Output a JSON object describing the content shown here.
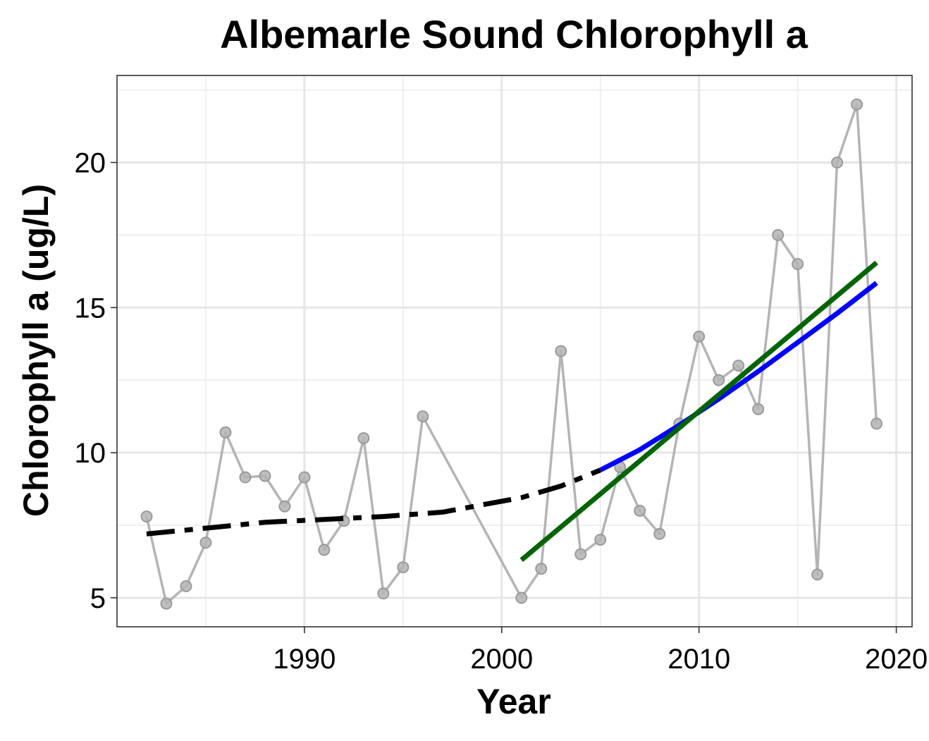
{
  "chart_data": {
    "type": "line",
    "title": "Albemarle Sound Chlorophyll a",
    "xlabel": "Year",
    "ylabel": "Chlorophyll a (ug/L)",
    "xlim": [
      1980.5,
      2020.8
    ],
    "ylim": [
      4.0,
      23.0
    ],
    "x_ticks": [
      1990,
      2000,
      2010,
      2020
    ],
    "y_ticks": [
      5,
      10,
      15,
      20
    ],
    "x_tick_labels": [
      "1990",
      "2000",
      "2010",
      "2020"
    ],
    "y_tick_labels": [
      "5",
      "10",
      "15",
      "20"
    ],
    "grid": true,
    "legend": "none",
    "series": [
      {
        "style": "line+points",
        "color": "#b4b4b4",
        "x": [
          1982,
          1983,
          1984,
          1985,
          1986,
          1987,
          1988,
          1989,
          1990,
          1991,
          1992,
          1993,
          1994,
          1995,
          1996,
          2001,
          2002,
          2003,
          2004,
          2005,
          2006,
          2007,
          2008,
          2009,
          2010,
          2011,
          2012,
          2013,
          2014,
          2015,
          2016,
          2017,
          2018,
          2019
        ],
        "y": [
          7.8,
          4.8,
          5.4,
          6.9,
          10.7,
          9.15,
          9.2,
          8.15,
          9.15,
          6.65,
          7.65,
          10.5,
          5.15,
          6.05,
          11.25,
          5.0,
          6.0,
          13.5,
          6.5,
          7.0,
          9.5,
          8.0,
          7.2,
          11.0,
          14.0,
          12.5,
          13.0,
          11.5,
          17.5,
          16.5,
          5.8,
          20.0,
          22.0,
          11.0
        ]
      },
      {
        "style": "dashed-trend",
        "color": "#000000",
        "x": [
          1982,
          1985,
          1988,
          1991,
          1994,
          1997,
          1999,
          2001,
          2003,
          2005
        ],
        "y": [
          7.2,
          7.4,
          7.6,
          7.7,
          7.8,
          7.95,
          8.2,
          8.45,
          8.85,
          9.4
        ]
      },
      {
        "style": "trend",
        "color": "#0000ff",
        "x": [
          2005,
          2007,
          2009,
          2011,
          2013,
          2015,
          2017,
          2019
        ],
        "y": [
          9.4,
          10.1,
          10.95,
          11.85,
          12.8,
          13.8,
          14.8,
          15.85
        ]
      },
      {
        "style": "trend",
        "color": "#006400",
        "x": [
          2001,
          2019
        ],
        "y": [
          6.3,
          16.55
        ]
      }
    ]
  }
}
